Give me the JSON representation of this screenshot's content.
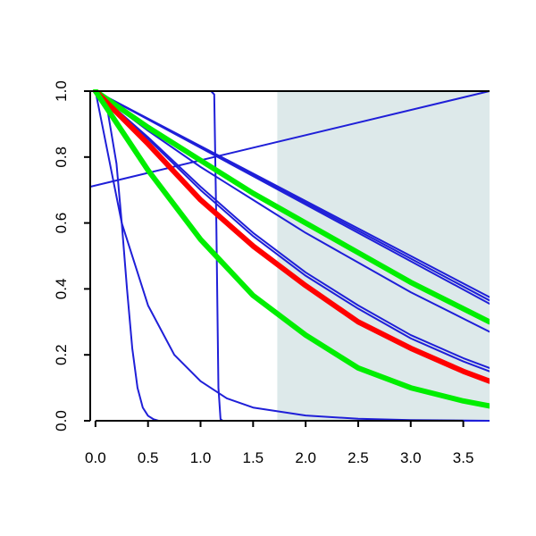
{
  "chart_data": {
    "type": "line",
    "title": "",
    "xlabel": "",
    "ylabel": "",
    "xlim": [
      -0.05,
      3.75
    ],
    "ylim": [
      0.0,
      1.0
    ],
    "grid": false,
    "x_ticks": [
      "0.0",
      "0.5",
      "1.0",
      "1.5",
      "2.0",
      "2.5",
      "3.0",
      "3.5"
    ],
    "x_tick_values": [
      0.0,
      0.5,
      1.0,
      1.5,
      2.0,
      2.5,
      3.0,
      3.5
    ],
    "y_ticks": [
      "0.0",
      "0.2",
      "0.4",
      "0.6",
      "0.8",
      "1.0"
    ],
    "y_tick_values": [
      0.0,
      0.2,
      0.4,
      0.6,
      0.8,
      1.0
    ],
    "shaded_region": {
      "x": [
        1.73,
        3.75
      ],
      "y": [
        0.0,
        1.0
      ],
      "color": "#dde9ea"
    },
    "colors": {
      "blue": "#1f1fd8",
      "red": "#ff0000",
      "green": "#00ee00",
      "axis": "#000000"
    },
    "series": [
      {
        "color": "#1f1fd8",
        "width": 2,
        "x": [
          0,
          1.0,
          1.1,
          1.13,
          1.15,
          1.17,
          1.19,
          1.21,
          3.75
        ],
        "y": [
          1.0,
          1.0,
          1.0,
          0.99,
          0.6,
          0.1,
          0.005,
          0.0,
          0.0
        ]
      },
      {
        "color": "#1f1fd8",
        "width": 2,
        "x": [
          0,
          0.1,
          0.2,
          0.25,
          0.3,
          0.35,
          0.4,
          0.45,
          0.5,
          0.55,
          0.6,
          3.75
        ],
        "y": [
          1.0,
          0.97,
          0.78,
          0.6,
          0.4,
          0.22,
          0.1,
          0.04,
          0.015,
          0.005,
          0.0,
          0.0
        ]
      },
      {
        "color": "#1f1fd8",
        "width": 2,
        "x": [
          0,
          0.25,
          0.5,
          0.75,
          1.0,
          1.25,
          1.5,
          2.0,
          2.5,
          3.0,
          3.75
        ],
        "y": [
          1.0,
          0.6,
          0.35,
          0.2,
          0.12,
          0.068,
          0.04,
          0.016,
          0.006,
          0.002,
          0.0
        ]
      },
      {
        "color": "#1f1fd8",
        "width": 2,
        "x": [
          -0.05,
          3.75
        ],
        "y": [
          0.71,
          1.0
        ]
      },
      {
        "color": "#1f1fd8",
        "width": 2,
        "x": [
          0,
          3.75
        ],
        "y": [
          1.0,
          0.375
        ]
      },
      {
        "color": "#1f1fd8",
        "width": 2,
        "x": [
          0,
          3.75
        ],
        "y": [
          1.0,
          0.365
        ]
      },
      {
        "color": "#1f1fd8",
        "width": 2,
        "x": [
          0,
          3.75
        ],
        "y": [
          1.0,
          0.355
        ]
      },
      {
        "color": "#1f1fd8",
        "width": 2,
        "x": [
          0,
          0.5,
          1.0,
          1.5,
          2.0,
          2.5,
          3.0,
          3.5,
          3.75
        ],
        "y": [
          1.0,
          0.88,
          0.77,
          0.67,
          0.57,
          0.48,
          0.39,
          0.31,
          0.27
        ]
      },
      {
        "color": "#1f1fd8",
        "width": 2,
        "x": [
          0,
          0.5,
          1.0,
          1.5,
          2.0,
          2.5,
          3.0,
          3.5,
          3.75
        ],
        "y": [
          1.0,
          0.86,
          0.71,
          0.57,
          0.45,
          0.35,
          0.26,
          0.19,
          0.16
        ]
      },
      {
        "color": "#1f1fd8",
        "width": 2,
        "x": [
          0,
          0.5,
          1.0,
          1.5,
          2.0,
          2.5,
          3.0,
          3.5,
          3.75
        ],
        "y": [
          1.0,
          0.855,
          0.7,
          0.56,
          0.44,
          0.34,
          0.25,
          0.18,
          0.15
        ]
      },
      {
        "color": "#00ee00",
        "width": 6,
        "x": [
          0,
          0.5,
          1.0,
          1.5,
          2.0,
          2.5,
          3.0,
          3.5,
          3.75
        ],
        "y": [
          1.0,
          0.89,
          0.79,
          0.69,
          0.6,
          0.51,
          0.42,
          0.34,
          0.3
        ]
      },
      {
        "color": "#ff0000",
        "width": 6,
        "x": [
          0,
          0.5,
          1.0,
          1.5,
          2.0,
          2.5,
          3.0,
          3.5,
          3.75
        ],
        "y": [
          1.0,
          0.84,
          0.67,
          0.53,
          0.41,
          0.3,
          0.22,
          0.15,
          0.12
        ]
      },
      {
        "color": "#00ee00",
        "width": 6,
        "x": [
          0,
          0.25,
          0.5,
          1.0,
          1.5,
          2.0,
          2.5,
          3.0,
          3.5,
          3.75
        ],
        "y": [
          1.0,
          0.88,
          0.76,
          0.55,
          0.38,
          0.26,
          0.16,
          0.1,
          0.06,
          0.045
        ]
      }
    ]
  }
}
